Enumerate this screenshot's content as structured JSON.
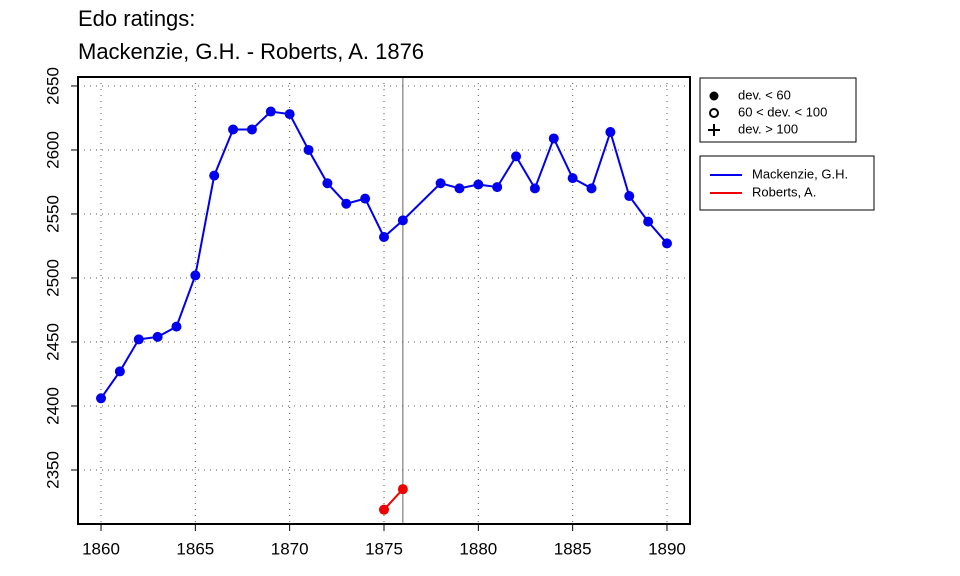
{
  "chart_data": {
    "type": "line",
    "title": [
      "Edo ratings:",
      "Mackenzie, G.H. - Roberts, A. 1876"
    ],
    "series": [
      {
        "name": "Mackenzie, G.H.",
        "color": "#0000ee",
        "x": [
          1860,
          1861,
          1862,
          1863,
          1864,
          1865,
          1866,
          1867,
          1868,
          1869,
          1870,
          1871,
          1872,
          1873,
          1874,
          1875,
          1876,
          1878,
          1879,
          1880,
          1881,
          1882,
          1883,
          1884,
          1885,
          1886,
          1887,
          1888,
          1889,
          1890
        ],
        "values": [
          2406,
          2427,
          2452,
          2454,
          2462,
          2502,
          2580,
          2616,
          2616,
          2630,
          2628,
          2600,
          2574,
          2558,
          2562,
          2532,
          2545,
          2574,
          2570,
          2573,
          2571,
          2595,
          2570,
          2609,
          2578,
          2570,
          2614,
          2564,
          2544,
          2527
        ]
      },
      {
        "name": "Roberts, A.",
        "color": "#ee0000",
        "x": [
          1875,
          1876
        ],
        "values": [
          2319,
          2335
        ]
      }
    ],
    "vline": 1876,
    "marker_legend": [
      "dev. < 60",
      "60 < dev. < 100",
      "dev. > 100"
    ],
    "xlim": [
      1858.78,
      1891.22
    ],
    "xticks": [
      1860,
      1865,
      1870,
      1875,
      1880,
      1885,
      1890
    ],
    "ylim": [
      2307.8,
      2657
    ],
    "yticks": [
      2350,
      2400,
      2450,
      2500,
      2550,
      2600,
      2650
    ],
    "grid": true
  }
}
